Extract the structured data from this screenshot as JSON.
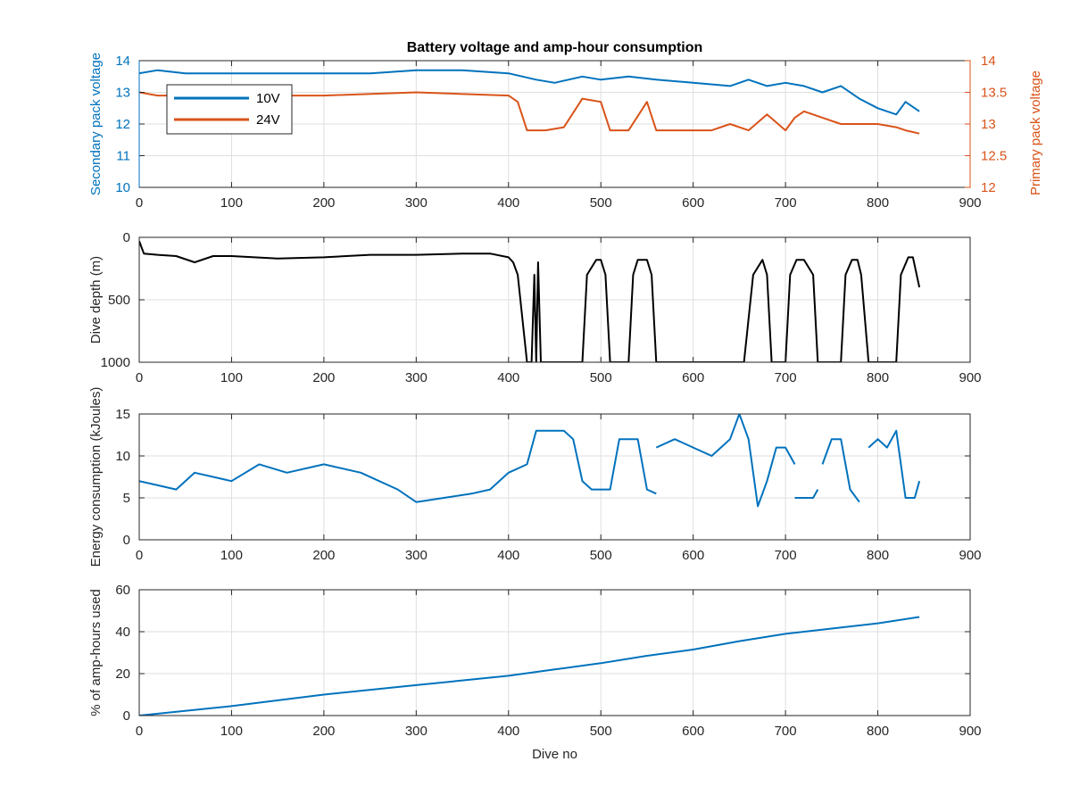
{
  "colors": {
    "blue": "#0072BD",
    "orange": "#D95319",
    "black": "#000000",
    "grid": "#dfdfdf",
    "axis": "#262626"
  },
  "chart_data": [
    {
      "type": "line",
      "title": "Battery voltage and amp-hour consumption",
      "xlabel": "",
      "ylabel": "Secondary pack voltage",
      "ylabel_right": "Primary pack voltage",
      "xlim": [
        0,
        900
      ],
      "ylim": [
        10,
        14
      ],
      "ylim_right": [
        12,
        14
      ],
      "xticks": [
        0,
        100,
        200,
        300,
        400,
        500,
        600,
        700,
        800,
        900
      ],
      "yticks": [
        10,
        11,
        12,
        13,
        14
      ],
      "yticks_right": [
        12,
        12.5,
        13,
        13.5,
        14
      ],
      "grid": true,
      "legend_position": "top-left",
      "series": [
        {
          "name": "10V",
          "axis": "left",
          "color": "#0072BD",
          "x": [
            0,
            20,
            50,
            100,
            150,
            200,
            250,
            300,
            350,
            400,
            430,
            450,
            480,
            500,
            530,
            560,
            600,
            640,
            660,
            680,
            700,
            720,
            740,
            760,
            780,
            800,
            820,
            830,
            845
          ],
          "y": [
            13.6,
            13.7,
            13.6,
            13.6,
            13.6,
            13.6,
            13.6,
            13.7,
            13.7,
            13.6,
            13.4,
            13.3,
            13.5,
            13.4,
            13.5,
            13.4,
            13.3,
            13.2,
            13.4,
            13.2,
            13.3,
            13.2,
            13.0,
            13.2,
            12.8,
            12.5,
            12.3,
            12.7,
            12.4
          ]
        },
        {
          "name": "24V",
          "axis": "right",
          "color": "#D95319",
          "x": [
            0,
            20,
            100,
            200,
            300,
            400,
            410,
            420,
            440,
            460,
            480,
            500,
            510,
            530,
            550,
            560,
            580,
            600,
            620,
            640,
            660,
            680,
            700,
            710,
            720,
            740,
            760,
            780,
            800,
            820,
            830,
            845
          ],
          "y": [
            13.5,
            13.45,
            13.45,
            13.45,
            13.5,
            13.45,
            13.35,
            12.9,
            12.9,
            12.95,
            13.4,
            13.35,
            12.9,
            12.9,
            13.35,
            12.9,
            12.9,
            12.9,
            12.9,
            13.0,
            12.9,
            13.15,
            12.9,
            13.1,
            13.2,
            13.1,
            13.0,
            13.0,
            13.0,
            12.95,
            12.9,
            12.85
          ]
        }
      ]
    },
    {
      "type": "line",
      "xlabel": "",
      "ylabel": "Dive depth (m)",
      "xlim": [
        0,
        900
      ],
      "ylim": [
        0,
        1000
      ],
      "y_reversed": true,
      "xticks": [
        0,
        100,
        200,
        300,
        400,
        500,
        600,
        700,
        800,
        900
      ],
      "yticks": [
        0,
        500,
        1000
      ],
      "grid": true,
      "series": [
        {
          "color": "#000000",
          "x": [
            0,
            5,
            20,
            40,
            60,
            80,
            100,
            150,
            200,
            250,
            300,
            350,
            380,
            400,
            405,
            410,
            420,
            425,
            428,
            430,
            432,
            435,
            450,
            470,
            480,
            485,
            495,
            500,
            505,
            510,
            530,
            535,
            540,
            550,
            555,
            560,
            565,
            580,
            600,
            640,
            650,
            655,
            665,
            675,
            680,
            685,
            700,
            705,
            712,
            720,
            730,
            735,
            740,
            760,
            765,
            772,
            778,
            782,
            790,
            800,
            820,
            825,
            833,
            838,
            845
          ],
          "y": [
            30,
            130,
            140,
            150,
            200,
            150,
            150,
            170,
            160,
            140,
            140,
            130,
            130,
            160,
            200,
            300,
            1000,
            1000,
            300,
            1000,
            200,
            1000,
            1000,
            1000,
            1000,
            300,
            180,
            180,
            300,
            1000,
            1000,
            300,
            180,
            180,
            300,
            1000,
            1000,
            1000,
            1000,
            1000,
            1000,
            1000,
            300,
            180,
            300,
            1000,
            1000,
            300,
            180,
            180,
            300,
            1000,
            1000,
            1000,
            300,
            180,
            180,
            300,
            1000,
            1000,
            1000,
            300,
            160,
            160,
            400
          ]
        }
      ]
    },
    {
      "type": "line",
      "xlabel": "",
      "ylabel": "Energy consumption (kJoules)",
      "xlim": [
        0,
        900
      ],
      "ylim": [
        0,
        15
      ],
      "xticks": [
        0,
        100,
        200,
        300,
        400,
        500,
        600,
        700,
        800,
        900
      ],
      "yticks": [
        0,
        5,
        10,
        15
      ],
      "grid": true,
      "series": [
        {
          "color": "#0072BD",
          "x": [
            0,
            20,
            40,
            60,
            100,
            130,
            160,
            200,
            240,
            280,
            300,
            330,
            360,
            380,
            400,
            420,
            430,
            440,
            460,
            470,
            480,
            490,
            510,
            520,
            540,
            550,
            560,
            null,
            560,
            580,
            600,
            620,
            640,
            650,
            660,
            670,
            680,
            690,
            700,
            710,
            null,
            710,
            730,
            735,
            null,
            740,
            750,
            760,
            770,
            780,
            null,
            785,
            790,
            800,
            810,
            820,
            830,
            840,
            845
          ],
          "y": [
            7,
            6.5,
            6,
            8,
            7,
            9,
            8,
            9,
            8,
            6,
            4.5,
            5,
            5.5,
            6,
            8,
            9,
            13,
            13,
            13,
            12,
            7,
            6,
            6,
            12,
            12,
            6,
            5.5,
            null,
            11,
            12,
            11,
            10,
            12,
            15,
            12,
            4,
            7,
            11,
            11,
            9,
            null,
            5,
            5,
            6,
            null,
            9,
            12,
            12,
            6,
            4.5,
            null,
            null,
            11,
            12,
            11,
            13,
            5,
            5,
            7
          ]
        }
      ]
    },
    {
      "type": "line",
      "xlabel": "Dive no",
      "ylabel": "% of amp-hours used",
      "xlim": [
        0,
        900
      ],
      "ylim": [
        0,
        60
      ],
      "xticks": [
        0,
        100,
        200,
        300,
        400,
        500,
        600,
        700,
        800,
        900
      ],
      "yticks": [
        0,
        20,
        40,
        60
      ],
      "grid": true,
      "series": [
        {
          "color": "#0072BD",
          "x": [
            0,
            100,
            200,
            300,
            400,
            450,
            500,
            550,
            600,
            650,
            700,
            750,
            800,
            845
          ],
          "y": [
            0,
            4.5,
            10,
            14.5,
            19,
            22,
            25,
            28.5,
            31.5,
            35.5,
            39,
            41.5,
            44,
            47
          ]
        }
      ]
    }
  ]
}
